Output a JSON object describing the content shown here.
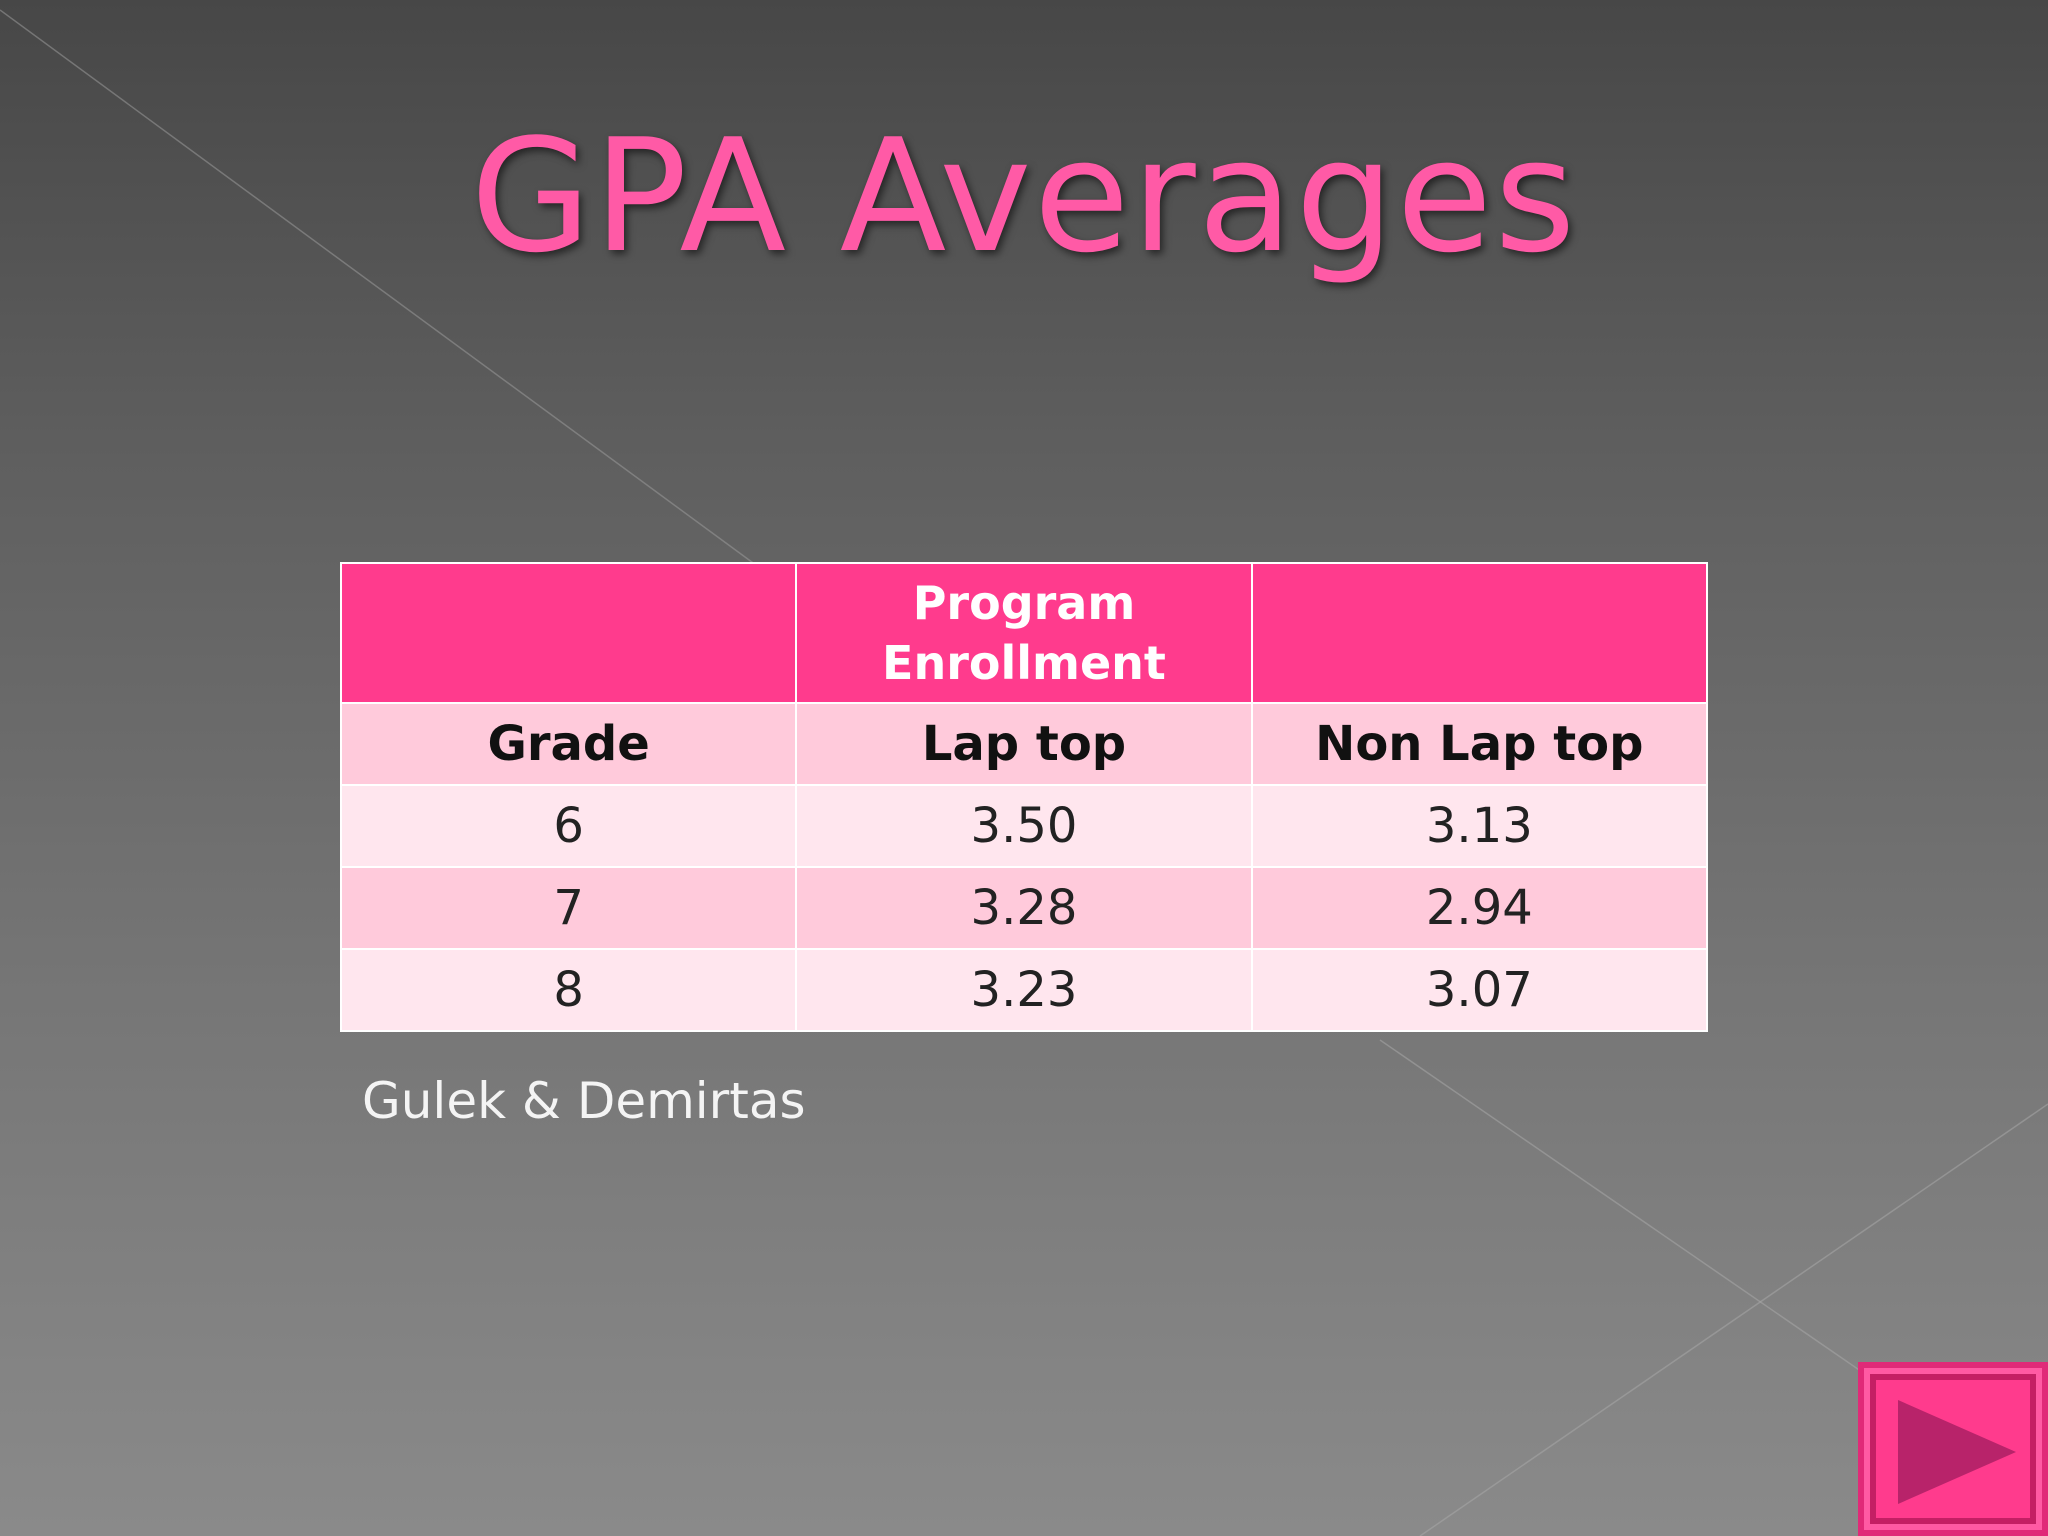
{
  "slide": {
    "title": "GPA Averages",
    "source": "Gulek & Demirtas"
  },
  "table": {
    "header": {
      "col1": "",
      "col2_line1": "Program",
      "col2_line2": "Enrollment",
      "col3": ""
    },
    "columns": [
      "Grade",
      "Lap top",
      "Non Lap top"
    ],
    "rows": [
      [
        "6",
        "3.50",
        "3.13"
      ],
      [
        "7",
        "3.28",
        "2.94"
      ],
      [
        "8",
        "3.23",
        "3.07"
      ]
    ]
  },
  "nav": {
    "next_icon": "play-triangle-icon"
  },
  "colors": {
    "accent": "#ff3b8d",
    "title": "#ff5aa6",
    "row_light": "#ffe6ee",
    "row_mid": "#ffcadb",
    "button_icon": "#b8236a"
  }
}
